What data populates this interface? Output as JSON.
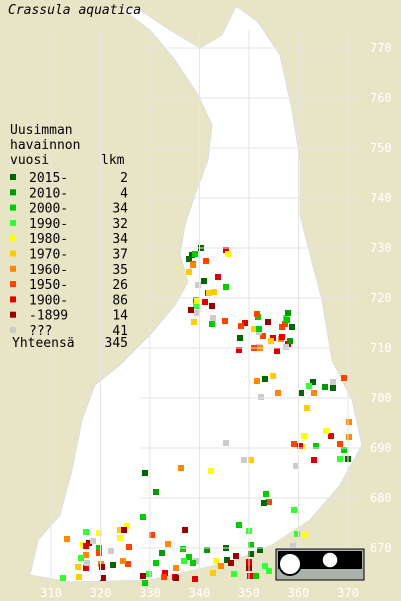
{
  "title": "Crassula aquatica",
  "legend": {
    "header": [
      "Uusimman",
      "havainnon",
      "vuosi"
    ],
    "count_header": "lkm",
    "rows": [
      {
        "label": "2015-",
        "count": 2,
        "color": "#006600"
      },
      {
        "label": "2010-",
        "count": 4,
        "color": "#009900"
      },
      {
        "label": "2000-",
        "count": 34,
        "color": "#00cc00"
      },
      {
        "label": "1990-",
        "count": 32,
        "color": "#33ff33"
      },
      {
        "label": "1980-",
        "count": 34,
        "color": "#ffff00"
      },
      {
        "label": "1970-",
        "count": 37,
        "color": "#ffcc00"
      },
      {
        "label": "1960-",
        "count": 35,
        "color": "#ff8800"
      },
      {
        "label": "1950-",
        "count": 26,
        "color": "#ff4400"
      },
      {
        "label": "1900-",
        "count": 86,
        "color": "#dd0000"
      },
      {
        "label": "-1899",
        "count": 14,
        "color": "#990000"
      },
      {
        "label": "???",
        "count": 41,
        "color": "#cccccc"
      }
    ],
    "total_label": "Yhteensä",
    "total": 345
  },
  "grid": {
    "north": [
      770,
      760,
      750,
      740,
      730,
      720,
      710,
      700,
      690,
      680,
      670
    ],
    "east": [
      310,
      320,
      330,
      340,
      350,
      360,
      370
    ]
  }
}
